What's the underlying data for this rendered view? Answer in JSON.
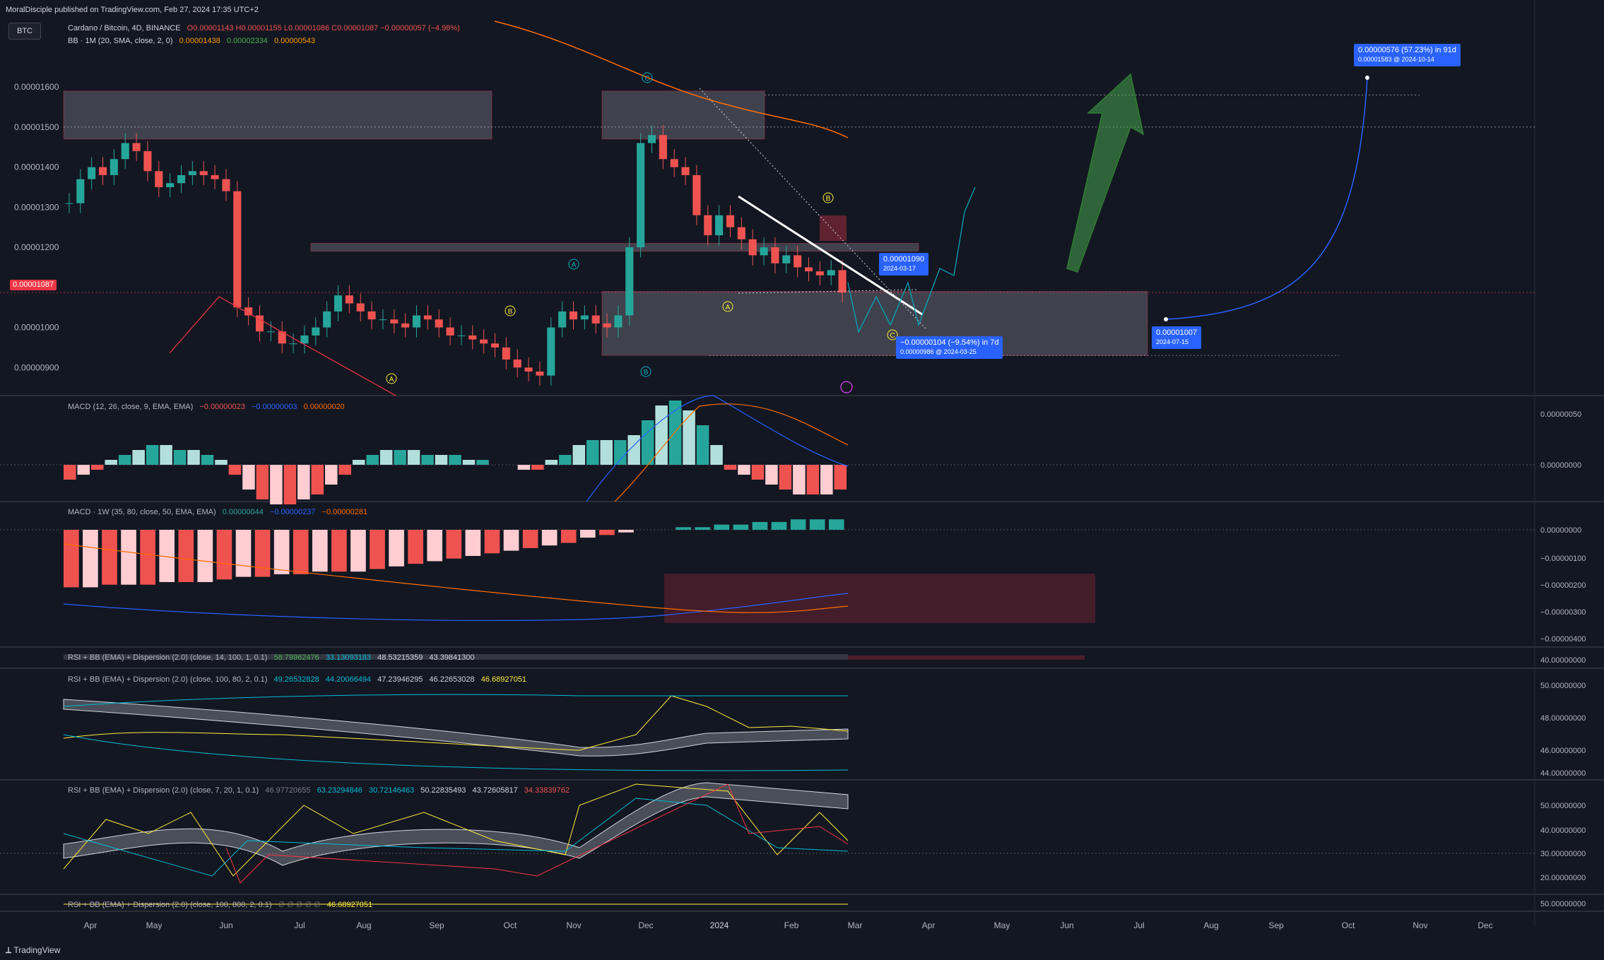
{
  "published": "MoralDisciple published on TradingView.com, Feb 27, 2024 17:35 UTC+2",
  "symbol_button": "BTC",
  "legend": {
    "title": "Cardano / Bitcoin, 4D, BINANCE",
    "ohlc": "O0.00001143 H0.00001155 L0.00001086 C0.00001087 −0.00000057 (−4.98%)",
    "bb": "BB · 1M (20, SMA, close, 2, 0)",
    "bb_values": [
      "0.00001438",
      "0.00002334",
      "0.00000543"
    ]
  },
  "indicators": {
    "macd1": {
      "label": "MACD (12, 26, close, 9, EMA, EMA)",
      "values": [
        "−0.00000023",
        "−0.00000003",
        "0.00000020"
      ]
    },
    "macd2": {
      "label": "MACD · 1W (35, 80, close, 50, EMA, EMA)",
      "values": [
        "0.00000044",
        "−0.00000237",
        "−0.00000281"
      ]
    },
    "rsi1": {
      "label": "RSI + BB (EMA) + Dispersion (2.0) (close, 14, 100, 1, 0.1)",
      "values": [
        "58.79962476",
        "33.13093183",
        "48.53215359",
        "43.39841300"
      ]
    },
    "rsi2": {
      "label": "RSI + BB (EMA) + Dispersion (2.0) (close, 100, 80, 2, 0.1)",
      "values": [
        "49.26532828",
        "44.20066494",
        "47.23946295",
        "46.22653028",
        "46.68927051"
      ]
    },
    "rsi3": {
      "label": "RSI + BB (EMA) + Dispersion (2.0) (close, 7, 20, 1, 0.1)",
      "values": [
        "46.97720655",
        "63.23294846",
        "30.72146463",
        "50.22835493",
        "43.72605817",
        "34.33839762"
      ]
    },
    "rsi4": {
      "label": "RSI + BB (EMA) + Dispersion (2.0) (close, 100, 800, 2, 0.1)",
      "values": [
        "∅ ∅ ∅ ∅ ∅",
        "46.68927051"
      ]
    }
  },
  "tags": {
    "target": {
      "main": "0.00000576 (57.23%) in 91d",
      "sub": "0.00001583 @ 2024-10-14"
    },
    "drop": {
      "main": "−0.00000104 (−9.54%) in 7d",
      "sub": "0.00000986 @ 2024-03-25"
    },
    "p1090": {
      "main": "0.00001090",
      "sub": "2024-03-17"
    },
    "p1007": {
      "main": "0.00001007",
      "sub": "2024-07-15"
    },
    "last_price": "0.00001087"
  },
  "colors": {
    "up": "#26a69a",
    "down": "#ef5350",
    "up_light": "#b2dfdb",
    "down_light": "#ffcdd2",
    "accent": "#2962ff",
    "bg": "#131722"
  },
  "chart_data": {
    "type": "candlestick",
    "title": "Cardano / Bitcoin, 4D, BINANCE",
    "x_ticks": [
      "Apr",
      "May",
      "Jun",
      "Jul",
      "Aug",
      "Sep",
      "Oct",
      "Nov",
      "Dec",
      "2024",
      "Feb",
      "Mar",
      "Apr",
      "May",
      "Jun",
      "Jul",
      "Aug",
      "Sep",
      "Oct",
      "Nov",
      "Dec"
    ],
    "price_ticks": [
      "0.00001600",
      "0.00001500",
      "0.00001400",
      "0.00001300",
      "0.00001200",
      "0.00001000",
      "0.00000900"
    ],
    "price_ylim": [
      8.3e-06,
      1.75e-05
    ],
    "close_path": [
      1310,
      1370,
      1400,
      1380,
      1420,
      1460,
      1440,
      1390,
      1350,
      1360,
      1380,
      1390,
      1380,
      1370,
      1340,
      1050,
      1030,
      990,
      990,
      960,
      960,
      980,
      1000,
      1040,
      1080,
      1060,
      1040,
      1020,
      1020,
      1010,
      1000,
      1030,
      1020,
      1000,
      980,
      980,
      970,
      960,
      950,
      920,
      900,
      890,
      880,
      1000,
      1040,
      1020,
      1030,
      1010,
      1000,
      1030,
      1200,
      1460,
      1480,
      1420,
      1400,
      1380,
      1280,
      1230,
      1280,
      1250,
      1220,
      1180,
      1200,
      1160,
      1180,
      1150,
      1140,
      1130,
      1143,
      1087
    ],
    "forecast_path": [
      1087,
      1090,
      986,
      1000,
      1100,
      1300
    ],
    "target_curve": {
      "start": {
        "date": "2024-07-15",
        "price": 1.007e-05
      },
      "end": {
        "date": "2024-10-14",
        "price": 1.583e-05
      }
    },
    "zones": [
      {
        "from_price": 1.47e-05,
        "to_price": 1.59e-05,
        "label": "resistance-left"
      },
      {
        "from_price": 1.47e-05,
        "to_price": 1.59e-05,
        "label": "resistance-dec"
      },
      {
        "from_price": 1.19e-05,
        "to_price": 1.21e-05,
        "label": "mid-zone"
      },
      {
        "from_price": 9.3e-06,
        "to_price": 1.09e-05,
        "label": "support-zone"
      }
    ],
    "wave_labels": [
      "C",
      "A",
      "B",
      "A",
      "B",
      "A",
      "B",
      "C"
    ],
    "macd1_ticks": [
      "0.00000050",
      "0.00000000"
    ],
    "macd1_hist": [
      -3,
      -2,
      -1,
      1,
      2,
      3,
      4,
      4,
      3,
      3,
      2,
      1,
      -2,
      -5,
      -7,
      -8,
      -8,
      -7,
      -6,
      -4,
      -2,
      1,
      2,
      3,
      3,
      3,
      2,
      2,
      2,
      1,
      1,
      0,
      0,
      -1,
      -1,
      1,
      2,
      4,
      5,
      5,
      5,
      6,
      9,
      12,
      13,
      11,
      8,
      4,
      -1,
      -2,
      -3,
      -4,
      -5,
      -6,
      -6,
      -6,
      -5
    ],
    "macd2_ticks": [
      "0.00000000",
      "−0.00000100",
      "−0.00000200",
      "−0.00000300",
      "−0.00000400"
    ],
    "macd2_hist": [
      -22,
      -22,
      -21,
      -21,
      -21,
      -20,
      -20,
      -20,
      -19,
      -18,
      -18,
      -17,
      -17,
      -16,
      -16,
      -16,
      -15,
      -14,
      -13,
      -12,
      -11,
      -10,
      -9,
      -8,
      -7,
      -6,
      -5,
      -3,
      -2,
      -1,
      0,
      0,
      1,
      1,
      2,
      2,
      3,
      3,
      4,
      4,
      4
    ],
    "rsi1_ticks": [
      "40.00000000"
    ],
    "rsi2_ticks": [
      "50.00000000",
      "48.00000000",
      "46.00000000",
      "44.00000000"
    ],
    "rsi3_ticks": [
      "50.00000000",
      "40.00000000",
      "30.00000000",
      "20.00000000"
    ],
    "rsi4_ticks": [
      "50.00000000"
    ]
  },
  "footer": "TradingView"
}
